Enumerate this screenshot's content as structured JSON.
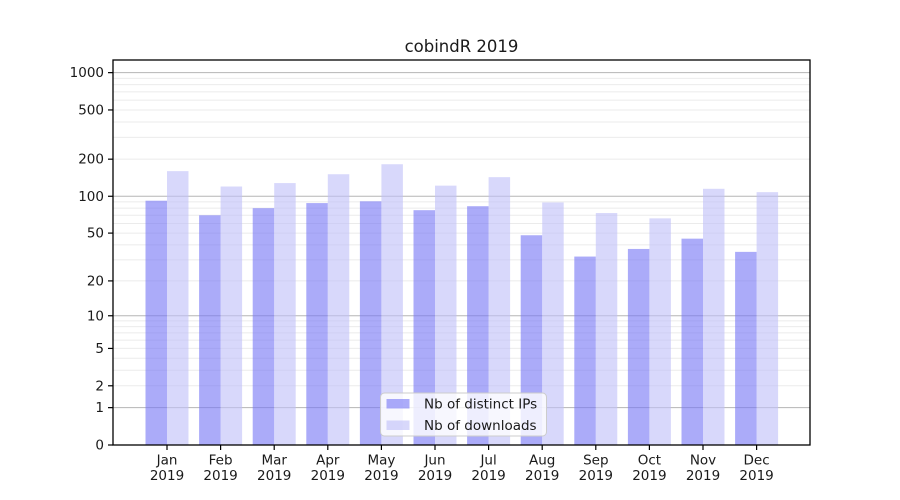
{
  "chart_data": {
    "type": "bar",
    "title": "cobindR 2019",
    "categories": [
      "Jan",
      "Feb",
      "Mar",
      "Apr",
      "May",
      "Jun",
      "Jul",
      "Aug",
      "Sep",
      "Oct",
      "Nov",
      "Dec"
    ],
    "category_year": "2019",
    "series": [
      {
        "name": "Nb of distinct IPs",
        "color_hex": "#aaaaf8",
        "fill_rgba": "rgba(120,120,245,0.62)",
        "values": [
          92,
          70,
          80,
          88,
          91,
          77,
          83,
          48,
          32,
          37,
          45,
          35
        ]
      },
      {
        "name": "Nb of downloads",
        "color_hex": "#d8d8fa",
        "fill_rgba": "rgba(192,192,248,0.62)",
        "values": [
          160,
          120,
          128,
          151,
          182,
          122,
          143,
          89,
          73,
          66,
          115,
          108
        ]
      }
    ],
    "yscale": "log10(value+1)",
    "ytick_labels": [
      "1000",
      "500",
      "200",
      "100",
      "50",
      "20",
      "10",
      "5",
      "2",
      "1",
      "0"
    ],
    "ytick_values": [
      1000,
      500,
      200,
      100,
      50,
      20,
      10,
      5,
      2,
      1,
      0
    ],
    "ylim": [
      0,
      1265
    ],
    "grid": {
      "on": true,
      "major_values": [
        1,
        10,
        100,
        1000
      ],
      "major_color": "#b5b5b5",
      "minor_color": "#ebebeb"
    },
    "legend": {
      "position": "lower center",
      "background": "#ffffff",
      "border_color": "#cccccc"
    },
    "axis_color": "#000000",
    "background_color": "#ffffff"
  }
}
